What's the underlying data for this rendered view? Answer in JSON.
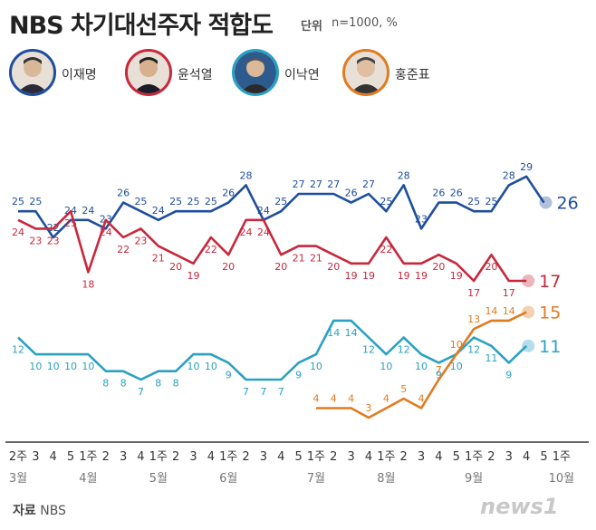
{
  "header": {
    "title": "NBS 차기대선주자 적합도",
    "unit_label": "단위",
    "unit_value": "n=1000, %"
  },
  "legend": [
    {
      "name": "이재명",
      "color": "#1f4e9c"
    },
    {
      "name": "윤석열",
      "color": "#c8283c"
    },
    {
      "name": "이낙연",
      "color": "#2aa1c3"
    },
    {
      "name": "홍준표",
      "color": "#e07b20"
    }
  ],
  "source": {
    "label": "자료",
    "value": "NBS"
  },
  "logo": "news1",
  "chart_data": {
    "type": "line",
    "title": "NBS 차기대선주자 적합도",
    "unit": "n=1000, %",
    "x": [
      "2주",
      "3",
      "4",
      "5",
      "1주",
      "2",
      "3",
      "4",
      "1주",
      "2",
      "3",
      "4",
      "1주",
      "2",
      "3",
      "4",
      "5",
      "1주",
      "2",
      "3",
      "4",
      "1주",
      "2",
      "3",
      "4",
      "5",
      "1주",
      "2",
      "3",
      "4",
      "5",
      "1주"
    ],
    "months": [
      {
        "label": "3월",
        "index": 0
      },
      {
        "label": "4월",
        "index": 4
      },
      {
        "label": "5월",
        "index": 8
      },
      {
        "label": "6월",
        "index": 12
      },
      {
        "label": "7월",
        "index": 17
      },
      {
        "label": "8월",
        "index": 21
      },
      {
        "label": "9월",
        "index": 26
      },
      {
        "label": "10월",
        "index": 31
      }
    ],
    "series": [
      {
        "name": "이재명",
        "color": "#1f4e9c",
        "values": [
          25,
          25,
          22,
          24,
          24,
          23,
          26,
          25,
          24,
          25,
          25,
          25,
          26,
          28,
          24,
          25,
          27,
          27,
          27,
          26,
          27,
          25,
          28,
          23,
          26,
          26,
          25,
          25,
          28,
          29,
          26,
          null
        ],
        "last_label": "26"
      },
      {
        "name": "윤석열",
        "color": "#c8283c",
        "values": [
          24,
          23,
          23,
          25,
          18,
          24,
          22,
          23,
          21,
          20,
          19,
          22,
          20,
          24,
          24,
          20,
          21,
          21,
          20,
          19,
          19,
          22,
          19,
          19,
          20,
          19,
          17,
          20,
          17,
          17,
          null,
          null
        ],
        "last_label": "17"
      },
      {
        "name": "이낙연",
        "color": "#2aa1c3",
        "values": [
          12,
          10,
          10,
          10,
          10,
          8,
          8,
          7,
          8,
          8,
          10,
          10,
          9,
          7,
          7,
          7,
          9,
          10,
          14,
          14,
          12,
          10,
          12,
          10,
          9,
          10,
          12,
          11,
          9,
          11,
          null,
          null
        ],
        "last_label": "11"
      },
      {
        "name": "홍준표",
        "color": "#e07b20",
        "values": [
          null,
          null,
          null,
          null,
          null,
          null,
          null,
          null,
          null,
          null,
          null,
          null,
          null,
          null,
          null,
          null,
          null,
          4,
          4,
          4,
          3,
          4,
          5,
          4,
          7,
          10,
          13,
          14,
          14,
          15,
          null,
          null
        ],
        "last_label": "15"
      }
    ],
    "ylim": [
      0,
      32
    ],
    "grid": false
  }
}
